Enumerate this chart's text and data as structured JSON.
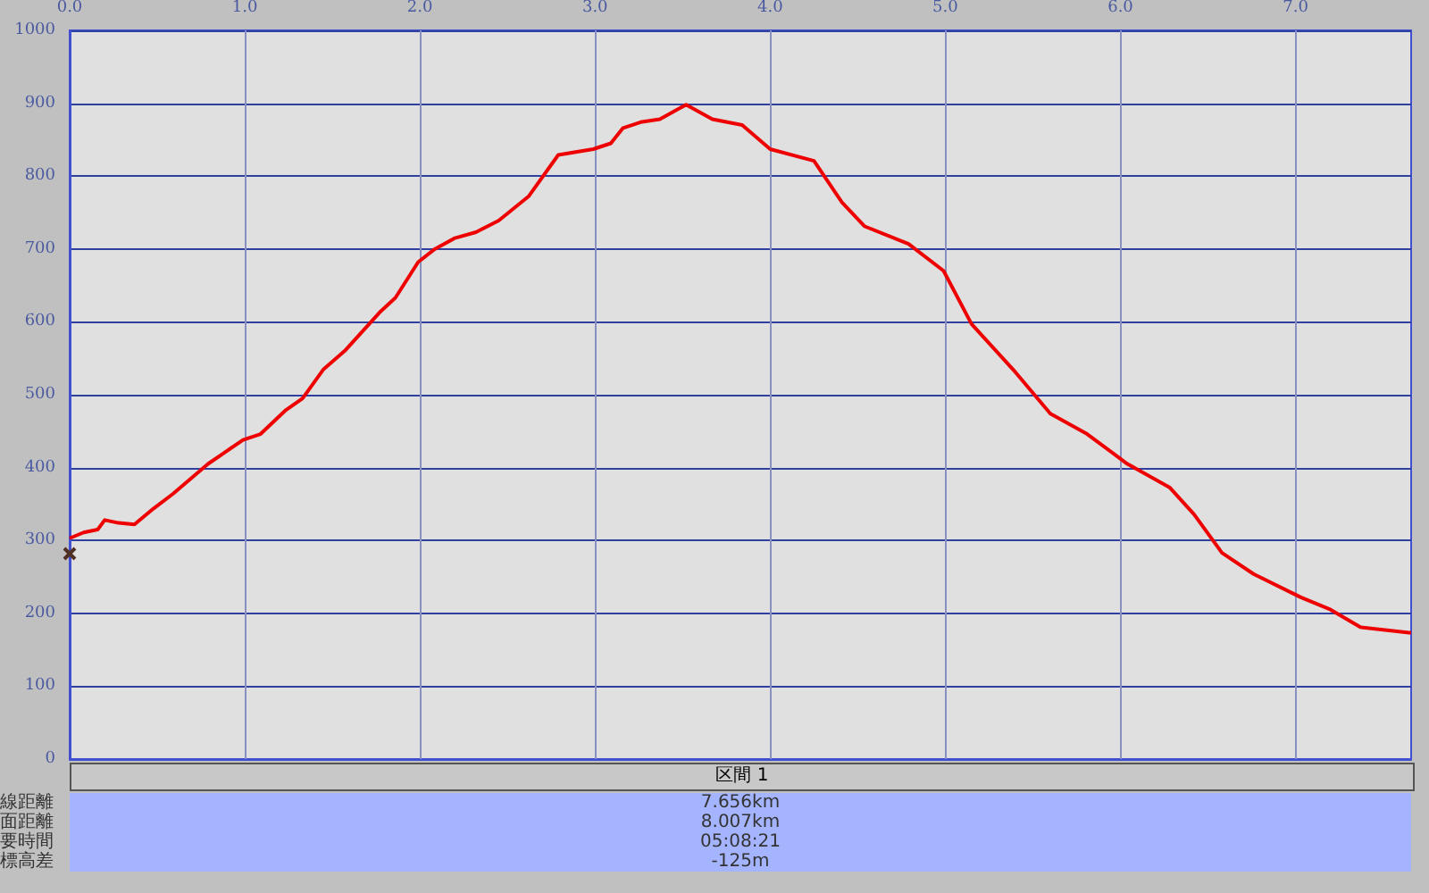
{
  "chart_data": {
    "type": "line",
    "x": [
      0,
      0.08,
      0.16,
      0.2,
      0.28,
      0.37,
      0.48,
      0.59,
      0.79,
      0.99,
      1.09,
      1.23,
      1.33,
      1.45,
      1.57,
      1.77,
      1.86,
      1.99,
      2.08,
      2.2,
      2.32,
      2.45,
      2.62,
      2.79,
      2.99,
      3.09,
      3.16,
      3.26,
      3.37,
      3.52,
      3.67,
      3.84,
      4.0,
      4.25,
      4.41,
      4.54,
      4.79,
      4.99,
      5.15,
      5.4,
      5.6,
      5.81,
      6.04,
      6.28,
      6.42,
      6.58,
      6.76,
      7.03,
      7.2,
      7.37,
      7.66
    ],
    "series": [
      {
        "color": "#ee0000",
        "values": [
          303,
          311,
          315,
          328,
          324,
          322,
          344,
          364,
          405,
          438,
          446,
          478,
          495,
          535,
          560,
          613,
          633,
          682,
          699,
          715,
          723,
          739,
          772,
          829,
          837,
          845,
          866,
          874,
          878,
          898,
          878,
          870,
          837,
          821,
          764,
          731,
          707,
          670,
          597,
          531,
          474,
          446,
          405,
          373,
          336,
          283,
          254,
          222,
          205,
          181,
          173
        ]
      }
    ],
    "xlim": [
      0,
      7.66
    ],
    "xticks": [
      {
        "value": 0,
        "label": "0.0"
      },
      {
        "value": 1,
        "label": "1.0"
      },
      {
        "value": 2,
        "label": "2.0"
      },
      {
        "value": 3,
        "label": "3.0"
      },
      {
        "value": 4,
        "label": "4.0"
      },
      {
        "value": 5,
        "label": "5.0"
      },
      {
        "value": 6,
        "label": "6.0"
      },
      {
        "value": 7,
        "label": "7.0"
      }
    ],
    "ylim": [
      0,
      1000
    ],
    "yticks": [
      0,
      100,
      200,
      300,
      400,
      500,
      600,
      700,
      800,
      900,
      1000
    ],
    "grid": true,
    "marker": "none",
    "line_style": "solid",
    "annotations": [
      "区間 1",
      "線距離",
      "7.656km",
      "面距離",
      "8.007km",
      "要時間",
      "05:08:21",
      "標高差",
      "-125m"
    ]
  }
}
